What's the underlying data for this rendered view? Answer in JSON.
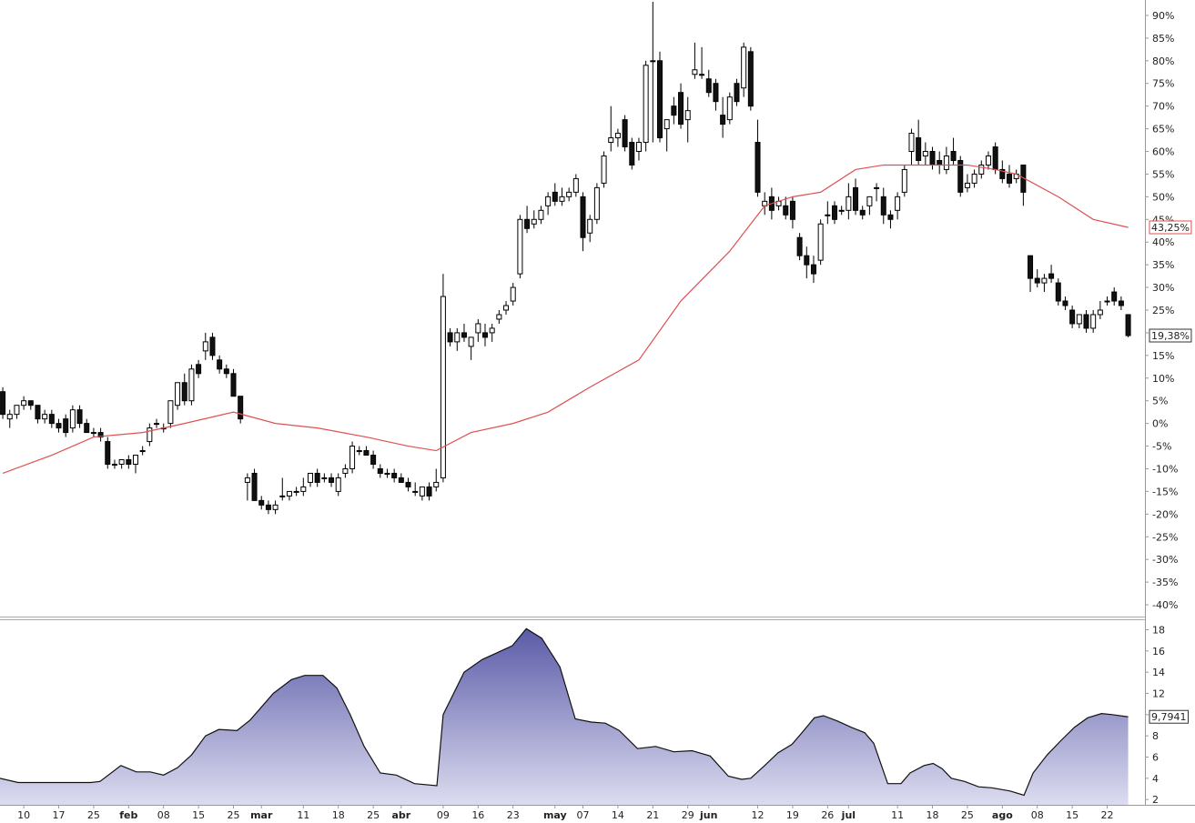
{
  "chart_data": [
    {
      "type": "candlestick",
      "x": [
        0,
        1,
        2,
        3,
        4,
        5,
        6,
        7,
        8,
        9,
        10,
        11,
        12,
        13,
        14,
        15,
        16,
        17,
        18,
        19,
        20,
        21,
        22,
        23,
        24,
        25,
        26,
        27,
        28,
        29,
        30,
        31,
        32,
        33,
        34,
        35,
        36,
        37,
        38,
        39,
        40,
        41,
        42,
        43,
        44,
        45,
        46,
        47,
        48,
        49,
        50,
        51,
        52,
        53,
        54,
        55,
        56,
        57,
        58,
        59,
        60,
        61,
        62,
        63,
        64,
        65,
        66,
        67,
        68,
        69,
        70,
        71,
        72,
        73,
        74,
        75,
        76,
        77,
        78,
        79,
        80,
        81,
        82,
        83,
        84,
        85,
        86,
        87,
        88,
        89,
        90,
        91,
        92,
        93,
        94,
        95,
        96,
        97,
        98,
        99,
        100,
        101,
        102,
        103,
        104,
        105,
        106,
        107,
        108,
        109,
        110,
        111,
        112,
        113,
        114,
        115,
        116,
        117,
        118,
        119,
        120,
        121,
        122,
        123,
        124,
        125,
        126,
        127,
        128,
        129,
        130,
        131,
        132,
        133,
        134,
        135,
        136,
        137,
        138,
        139,
        140,
        141,
        142,
        143,
        144,
        145,
        146,
        147,
        148,
        149,
        150,
        151,
        152,
        153,
        154,
        155,
        156,
        157,
        158,
        159,
        160,
        161
      ],
      "open": [
        7,
        1,
        2,
        4,
        5,
        4,
        1,
        2,
        0,
        1,
        -1,
        3,
        0,
        -2,
        -2,
        -4,
        -9,
        -9,
        -8,
        -9,
        -6,
        -4,
        0,
        -1,
        0,
        4,
        9,
        5,
        13,
        16,
        19,
        14,
        12,
        11,
        6,
        -13,
        -11,
        -17,
        -18,
        -19,
        -16,
        -16,
        -15,
        -15,
        -13,
        -11,
        -12,
        -12,
        -15,
        -11,
        -10,
        -6,
        -6,
        -7,
        -10,
        -11,
        -11,
        -12,
        -13,
        -15,
        -16,
        -14,
        -14,
        -12,
        20,
        18,
        20,
        17,
        20,
        20,
        20,
        23,
        25,
        27,
        33,
        45,
        44,
        45,
        48,
        51,
        49,
        50,
        51,
        50,
        42,
        45,
        53,
        62,
        63,
        67,
        62,
        60,
        62,
        80,
        80,
        65,
        70,
        73,
        67,
        77,
        77,
        76,
        75,
        68,
        67,
        75,
        74,
        82,
        62,
        48,
        50,
        48,
        48,
        49,
        41,
        37,
        35,
        36,
        46,
        48,
        47,
        47,
        52,
        47,
        48,
        52,
        50,
        46,
        47,
        51,
        60,
        63,
        59,
        60,
        58,
        56,
        60,
        58,
        52,
        53,
        55,
        57,
        61,
        56,
        55,
        54,
        57,
        37,
        32,
        31,
        33,
        31,
        27,
        25,
        22,
        24,
        21,
        24,
        27,
        29,
        27,
        24
      ],
      "high": [
        8,
        3,
        4,
        6,
        5,
        4,
        3,
        3,
        1,
        2,
        4,
        4,
        1,
        -1,
        -1,
        -3,
        -8,
        -8,
        -7,
        -7,
        -5,
        0,
        1,
        0,
        5,
        9,
        11,
        13,
        14,
        20,
        20,
        15,
        13,
        12,
        6,
        -11,
        -10,
        -16,
        -17,
        -17,
        -12,
        -15,
        -14,
        -12,
        -11,
        -10,
        -11,
        -11,
        -11,
        -9,
        -4,
        -5,
        -5,
        -6,
        -9,
        -10,
        -10,
        -11,
        -12,
        -13,
        -14,
        -13,
        -10,
        33,
        21,
        21,
        22,
        19,
        23,
        22,
        22,
        25,
        27,
        31,
        46,
        48,
        47,
        48,
        51,
        53,
        52,
        52,
        55,
        51,
        46,
        53,
        60,
        70,
        65,
        68,
        63,
        63,
        80,
        93,
        82,
        67,
        72,
        75,
        72,
        84,
        83,
        78,
        76,
        72,
        73,
        76,
        84,
        83,
        67,
        51,
        52,
        50,
        50,
        50,
        42,
        39,
        37,
        45,
        49,
        49,
        48,
        53,
        54,
        48,
        50,
        53,
        52,
        47,
        51,
        57,
        65,
        67,
        62,
        61,
        60,
        61,
        63,
        59,
        55,
        56,
        58,
        60,
        62,
        58,
        57,
        56,
        57,
        37,
        34,
        33,
        35,
        32,
        28,
        26,
        24,
        25,
        25,
        27,
        28,
        30,
        28,
        24
      ],
      "low": [
        1,
        -1,
        1,
        3,
        3,
        0,
        0,
        -1,
        -2,
        -3,
        -2,
        -1,
        -2,
        -3,
        -4,
        -10,
        -10,
        -10,
        -10,
        -11,
        -7,
        -5,
        -1,
        -2,
        -1,
        3,
        4,
        4,
        10,
        14,
        14,
        11,
        10,
        6,
        0,
        -17,
        -17,
        -19,
        -20,
        -20,
        -17,
        -17,
        -16,
        -16,
        -14,
        -14,
        -13,
        -14,
        -16,
        -12,
        -11,
        -7,
        -7,
        -10,
        -12,
        -12,
        -13,
        -13,
        -15,
        -16,
        -17,
        -17,
        -15,
        -13,
        17,
        16,
        18,
        14,
        18,
        17,
        18,
        22,
        24,
        26,
        32,
        42,
        43,
        44,
        46,
        48,
        48,
        49,
        50,
        38,
        40,
        44,
        52,
        60,
        61,
        60,
        56,
        58,
        60,
        62,
        62,
        60,
        66,
        65,
        62,
        76,
        76,
        72,
        69,
        63,
        66,
        70,
        72,
        69,
        50,
        46,
        45,
        47,
        45,
        43,
        36,
        32,
        31,
        35,
        44,
        44,
        46,
        45,
        46,
        45,
        46,
        49,
        44,
        43,
        45,
        50,
        57,
        57,
        57,
        56,
        55,
        55,
        57,
        50,
        51,
        52,
        54,
        56,
        55,
        53,
        52,
        53,
        48,
        29,
        30,
        29,
        31,
        26,
        25,
        21,
        21,
        20,
        20,
        23,
        26,
        26,
        25,
        19
      ],
      "close": [
        2,
        2,
        4,
        5,
        4,
        1,
        2,
        0,
        -1,
        -2,
        3,
        0,
        -2,
        -2,
        -3,
        -9,
        -9,
        -8,
        -9,
        -7,
        -6,
        -1,
        0,
        -1,
        5,
        9,
        5,
        12,
        11,
        18,
        15,
        12,
        11,
        6,
        1,
        -12,
        -17,
        -18,
        -19,
        -18,
        -16,
        -15,
        -15,
        -14,
        -11,
        -13,
        -12,
        -13,
        -12,
        -10,
        -5,
        -6,
        -7,
        -9,
        -11,
        -11,
        -12,
        -13,
        -14,
        -15,
        -14,
        -16,
        -13,
        28,
        18,
        20,
        19,
        19,
        22,
        19,
        21,
        24,
        26,
        30,
        45,
        43,
        45,
        47,
        50,
        49,
        50,
        51,
        54,
        41,
        45,
        52,
        59,
        63,
        64,
        61,
        57,
        62,
        79,
        80,
        63,
        67,
        68,
        66,
        69,
        78,
        77,
        73,
        71,
        66,
        72,
        71,
        83,
        70,
        51,
        49,
        47,
        49,
        46,
        45,
        37,
        35,
        33,
        44,
        46,
        45,
        47,
        50,
        47,
        46,
        50,
        52,
        46,
        45,
        50,
        56,
        64,
        58,
        60,
        57,
        57,
        59,
        58,
        51,
        53,
        55,
        57,
        59,
        56,
        54,
        53,
        55,
        51,
        32,
        31,
        32,
        32,
        27,
        26,
        22,
        24,
        21,
        24,
        25,
        27,
        27,
        26,
        19.38
      ],
      "close_label": "19,38%",
      "series": [
        {
          "color": "#e05050",
          "x": [
            0,
            7,
            13,
            20,
            26,
            33,
            39,
            45,
            52,
            58,
            62,
            67,
            73,
            78,
            84,
            91,
            97,
            104,
            109,
            113,
            117,
            122,
            126,
            130,
            134,
            138,
            142,
            145,
            151,
            156,
            161
          ],
          "values": [
            -11,
            -7,
            -3,
            -2,
            0,
            2.5,
            0,
            -1,
            -3,
            -5,
            -6,
            -2,
            0,
            2.5,
            8,
            14,
            27,
            38,
            48,
            50,
            51,
            56,
            57,
            57,
            57,
            57,
            56,
            55,
            50,
            45,
            43.25
          ],
          "value_labels": [
            null,
            null,
            null,
            null,
            null,
            null,
            null,
            null,
            null,
            null,
            null,
            null,
            null,
            null,
            null,
            null,
            null,
            null,
            null,
            null,
            null,
            null,
            null,
            null,
            null,
            null,
            null,
            null,
            null,
            null,
            "43,25%"
          ]
        }
      ],
      "xlim": [
        -0.4,
        163.4
      ],
      "ylim": [
        -42.4,
        93.4
      ],
      "yticks": [
        {
          "value": 90,
          "label": "90%"
        },
        {
          "value": 85,
          "label": "85%"
        },
        {
          "value": 80,
          "label": "80%"
        },
        {
          "value": 75,
          "label": "75%"
        },
        {
          "value": 70,
          "label": "70%"
        },
        {
          "value": 65,
          "label": "65%"
        },
        {
          "value": 60,
          "label": "60%"
        },
        {
          "value": 55,
          "label": "55%"
        },
        {
          "value": 50,
          "label": "50%"
        },
        {
          "value": 45,
          "label": "45%"
        },
        {
          "value": 40,
          "label": "40%"
        },
        {
          "value": 35,
          "label": "35%"
        },
        {
          "value": 30,
          "label": "30%"
        },
        {
          "value": 25,
          "label": "25%"
        },
        {
          "value": 20,
          "label": "20%"
        },
        {
          "value": 15,
          "label": "15%"
        },
        {
          "value": 10,
          "label": "10%"
        },
        {
          "value": 5,
          "label": "5%"
        },
        {
          "value": 0,
          "label": "0%"
        },
        {
          "value": -5,
          "label": "-5%"
        },
        {
          "value": -10,
          "label": "-10%"
        },
        {
          "value": -15,
          "label": "-15%"
        },
        {
          "value": -20,
          "label": "-20%"
        },
        {
          "value": -25,
          "label": "-25%"
        },
        {
          "value": -30,
          "label": "-30%"
        },
        {
          "value": -35,
          "label": "-35%"
        },
        {
          "value": -40,
          "label": "-40%"
        }
      ]
    },
    {
      "type": "area",
      "color": "#5b5ba8",
      "x": [
        -0.4,
        2.2,
        7.4,
        12.6,
        13.9,
        16.9,
        19.1,
        21.1,
        23,
        25,
        27,
        29,
        30.9,
        33.5,
        35.4,
        38.7,
        41.3,
        43.2,
        45.8,
        47.8,
        49.7,
        51.7,
        54,
        56.3,
        58.9,
        62.1,
        63,
        66,
        68.6,
        70.6,
        72.9,
        74.9,
        77.1,
        79.7,
        81.9,
        84.2,
        86.2,
        88.2,
        90.8,
        93.4,
        96,
        98.6,
        101.2,
        103.8,
        105.7,
        107,
        109,
        110.9,
        112.9,
        114.2,
        116.1,
        117.4,
        119.4,
        121.4,
        123.3,
        124.6,
        126.6,
        128.5,
        129.8,
        131.8,
        133.1,
        134.4,
        135.7,
        137.6,
        139.6,
        141.5,
        144.1,
        146.1,
        147.4,
        149.4,
        151.3,
        153.3,
        155.2,
        157.2,
        158.7,
        161
      ],
      "values": [
        4,
        3.6,
        3.6,
        3.6,
        3.7,
        5.2,
        4.6,
        4.6,
        4.3,
        5,
        6.2,
        8,
        8.6,
        8.5,
        9.5,
        12,
        13.3,
        13.7,
        13.7,
        12.5,
        10,
        7,
        4.5,
        4.3,
        3.5,
        3.3,
        10,
        14,
        15.2,
        15.8,
        16.5,
        18.1,
        17.2,
        14.5,
        9.6,
        9.3,
        9.2,
        8.5,
        6.8,
        7,
        6.5,
        6.6,
        6.1,
        4.2,
        3.9,
        4,
        5.2,
        6.4,
        7.2,
        8.2,
        9.7,
        9.9,
        9.4,
        8.8,
        8.3,
        7.3,
        3.5,
        3.5,
        4.5,
        5.2,
        5.4,
        4.9,
        4,
        3.7,
        3.2,
        3.1,
        2.8,
        2.4,
        4.5,
        6.2,
        7.5,
        8.8,
        9.7,
        10.1,
        10,
        9.7941
      ],
      "value_labels": [
        null,
        null,
        null,
        null,
        null,
        null,
        null,
        null,
        null,
        null,
        null,
        null,
        null,
        null,
        null,
        null,
        null,
        null,
        null,
        null,
        null,
        null,
        null,
        null,
        null,
        null,
        null,
        null,
        null,
        null,
        null,
        null,
        null,
        null,
        null,
        null,
        null,
        null,
        null,
        null,
        null,
        null,
        null,
        null,
        null,
        null,
        null,
        null,
        null,
        null,
        null,
        null,
        null,
        null,
        null,
        null,
        null,
        null,
        null,
        null,
        null,
        null,
        null,
        null,
        null,
        null,
        null,
        null,
        null,
        null,
        null,
        null,
        null,
        null,
        null,
        "9,7941"
      ],
      "xlim": [
        -0.4,
        163.4
      ],
      "ylim": [
        1.5,
        18.9
      ],
      "yticks": [
        2,
        4,
        6,
        8,
        10,
        12,
        14,
        16,
        18
      ],
      "xticks": [
        {
          "value": 3,
          "label": "10"
        },
        {
          "value": 8,
          "label": "17"
        },
        {
          "value": 13,
          "label": "25"
        },
        {
          "value": 18,
          "label": "feb"
        },
        {
          "value": 23,
          "label": "08"
        },
        {
          "value": 28,
          "label": "15"
        },
        {
          "value": 33,
          "label": "25"
        },
        {
          "value": 37,
          "label": "mar"
        },
        {
          "value": 43,
          "label": "11"
        },
        {
          "value": 48,
          "label": "18"
        },
        {
          "value": 53,
          "label": "25"
        },
        {
          "value": 57,
          "label": "abr"
        },
        {
          "value": 63,
          "label": "09"
        },
        {
          "value": 68,
          "label": "16"
        },
        {
          "value": 73,
          "label": "23"
        },
        {
          "value": 79,
          "label": "may"
        },
        {
          "value": 83,
          "label": "07"
        },
        {
          "value": 88,
          "label": "14"
        },
        {
          "value": 93,
          "label": "21"
        },
        {
          "value": 98,
          "label": "29"
        },
        {
          "value": 101,
          "label": "jun"
        },
        {
          "value": 108,
          "label": "12"
        },
        {
          "value": 113,
          "label": "19"
        },
        {
          "value": 118,
          "label": "26"
        },
        {
          "value": 121,
          "label": "jul"
        },
        {
          "value": 128,
          "label": "11"
        },
        {
          "value": 133,
          "label": "18"
        },
        {
          "value": 138,
          "label": "25"
        },
        {
          "value": 143,
          "label": "ago"
        },
        {
          "value": 148,
          "label": "08"
        },
        {
          "value": 153,
          "label": "15"
        },
        {
          "value": 158,
          "label": "22"
        }
      ]
    }
  ]
}
